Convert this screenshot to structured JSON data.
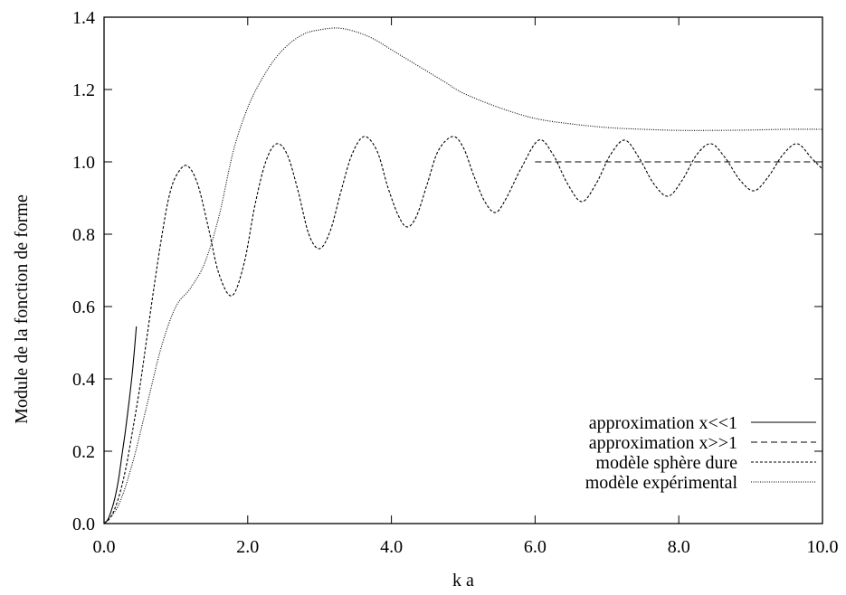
{
  "chart_data": {
    "type": "line",
    "xlabel": "k a",
    "ylabel": "Module de la fonction de forme",
    "xlim": [
      0.0,
      10.0
    ],
    "ylim": [
      0.0,
      1.4
    ],
    "xticks": [
      0.0,
      2.0,
      4.0,
      6.0,
      8.0,
      10.0
    ],
    "xtick_labels": [
      "0.0",
      "2.0",
      "4.0",
      "6.0",
      "8.0",
      "10.0"
    ],
    "yticks": [
      0.0,
      0.2,
      0.4,
      0.6,
      0.8,
      1.0,
      1.2,
      1.4
    ],
    "ytick_labels": [
      "0.0",
      "0.2",
      "0.4",
      "0.6",
      "0.8",
      "1.0",
      "1.2",
      "1.4"
    ],
    "grid": false,
    "legend_position": "bottom-right",
    "series": [
      {
        "name": "approximation x<<1",
        "style": "solid",
        "x": [
          0.0,
          0.05,
          0.1,
          0.15,
          0.2,
          0.25,
          0.3,
          0.35,
          0.4,
          0.45
        ],
        "y": [
          0.0,
          0.01,
          0.035,
          0.07,
          0.12,
          0.19,
          0.26,
          0.34,
          0.43,
          0.545
        ]
      },
      {
        "name": "approximation x>>1",
        "style": "dashed",
        "x": [
          6.0,
          10.0
        ],
        "y": [
          1.0,
          1.0
        ]
      },
      {
        "name": "modèle sphère dure",
        "style": "short-dashed",
        "x": [
          0.0,
          0.1,
          0.2,
          0.3,
          0.4,
          0.5,
          0.6,
          0.7,
          0.8,
          0.9,
          1.0,
          1.15,
          1.3,
          1.45,
          1.6,
          1.78,
          1.95,
          2.1,
          2.25,
          2.4,
          2.55,
          2.7,
          2.85,
          3.0,
          3.15,
          3.3,
          3.45,
          3.62,
          3.8,
          3.95,
          4.1,
          4.22,
          4.35,
          4.5,
          4.65,
          4.85,
          5.0,
          5.15,
          5.3,
          5.45,
          5.6,
          5.8,
          6.05,
          6.25,
          6.45,
          6.65,
          6.85,
          7.05,
          7.25,
          7.45,
          7.65,
          7.85,
          8.05,
          8.25,
          8.45,
          8.65,
          8.85,
          9.05,
          9.25,
          9.45,
          9.65,
          9.85,
          10.0
        ],
        "y": [
          0.0,
          0.02,
          0.07,
          0.15,
          0.26,
          0.38,
          0.52,
          0.66,
          0.79,
          0.9,
          0.96,
          0.99,
          0.94,
          0.82,
          0.69,
          0.63,
          0.72,
          0.88,
          1.0,
          1.05,
          1.02,
          0.92,
          0.8,
          0.76,
          0.81,
          0.92,
          1.02,
          1.07,
          1.03,
          0.93,
          0.85,
          0.82,
          0.85,
          0.94,
          1.03,
          1.07,
          1.04,
          0.96,
          0.89,
          0.86,
          0.9,
          0.98,
          1.06,
          1.02,
          0.94,
          0.89,
          0.94,
          1.02,
          1.06,
          1.01,
          0.94,
          0.905,
          0.95,
          1.02,
          1.05,
          1.01,
          0.95,
          0.92,
          0.96,
          1.02,
          1.05,
          1.01,
          0.98
        ]
      },
      {
        "name": "modèle expérimental",
        "style": "dotted",
        "x": [
          0.0,
          0.2,
          0.4,
          0.6,
          0.8,
          1.0,
          1.2,
          1.4,
          1.6,
          1.8,
          2.0,
          2.2,
          2.4,
          2.6,
          2.8,
          3.0,
          3.25,
          3.5,
          3.75,
          4.0,
          4.25,
          4.5,
          4.75,
          5.0,
          5.5,
          6.0,
          6.5,
          7.0,
          7.5,
          8.0,
          8.5,
          9.0,
          9.5,
          10.0
        ],
        "y": [
          0.0,
          0.05,
          0.17,
          0.33,
          0.49,
          0.6,
          0.65,
          0.72,
          0.85,
          1.03,
          1.15,
          1.23,
          1.29,
          1.33,
          1.355,
          1.365,
          1.37,
          1.36,
          1.34,
          1.31,
          1.28,
          1.25,
          1.22,
          1.19,
          1.15,
          1.12,
          1.105,
          1.095,
          1.09,
          1.087,
          1.087,
          1.088,
          1.09,
          1.09
        ]
      }
    ]
  }
}
